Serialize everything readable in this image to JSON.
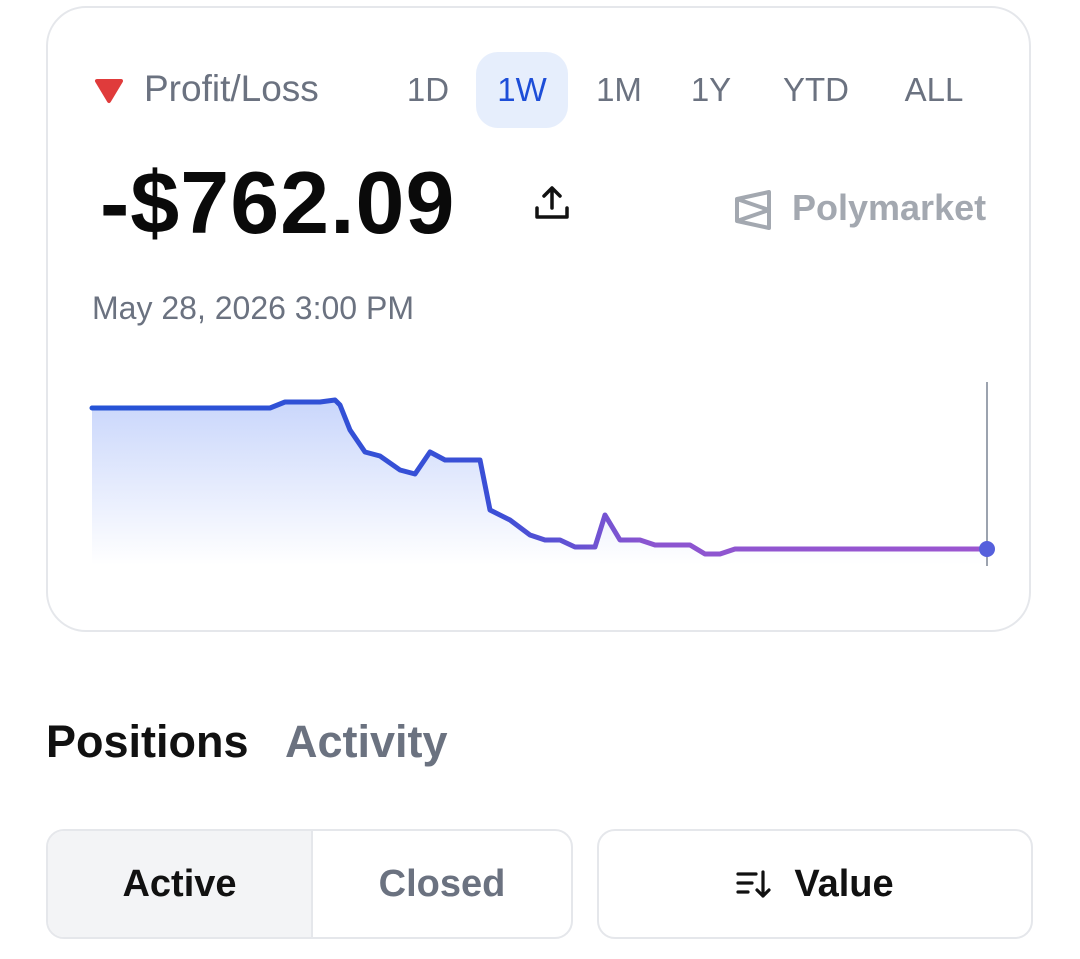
{
  "header": {
    "label": "Profit/Loss",
    "ranges": [
      "1D",
      "1W",
      "1M",
      "1Y",
      "YTD",
      "ALL"
    ],
    "amount": "-$762.09",
    "brand": "Polymarket",
    "timestamp": "May 28, 2026 3:00 PM"
  },
  "tabs": [
    "Positions",
    "Activity"
  ],
  "filters": {
    "status": [
      "Active",
      "Closed"
    ],
    "sort": "Value"
  }
}
